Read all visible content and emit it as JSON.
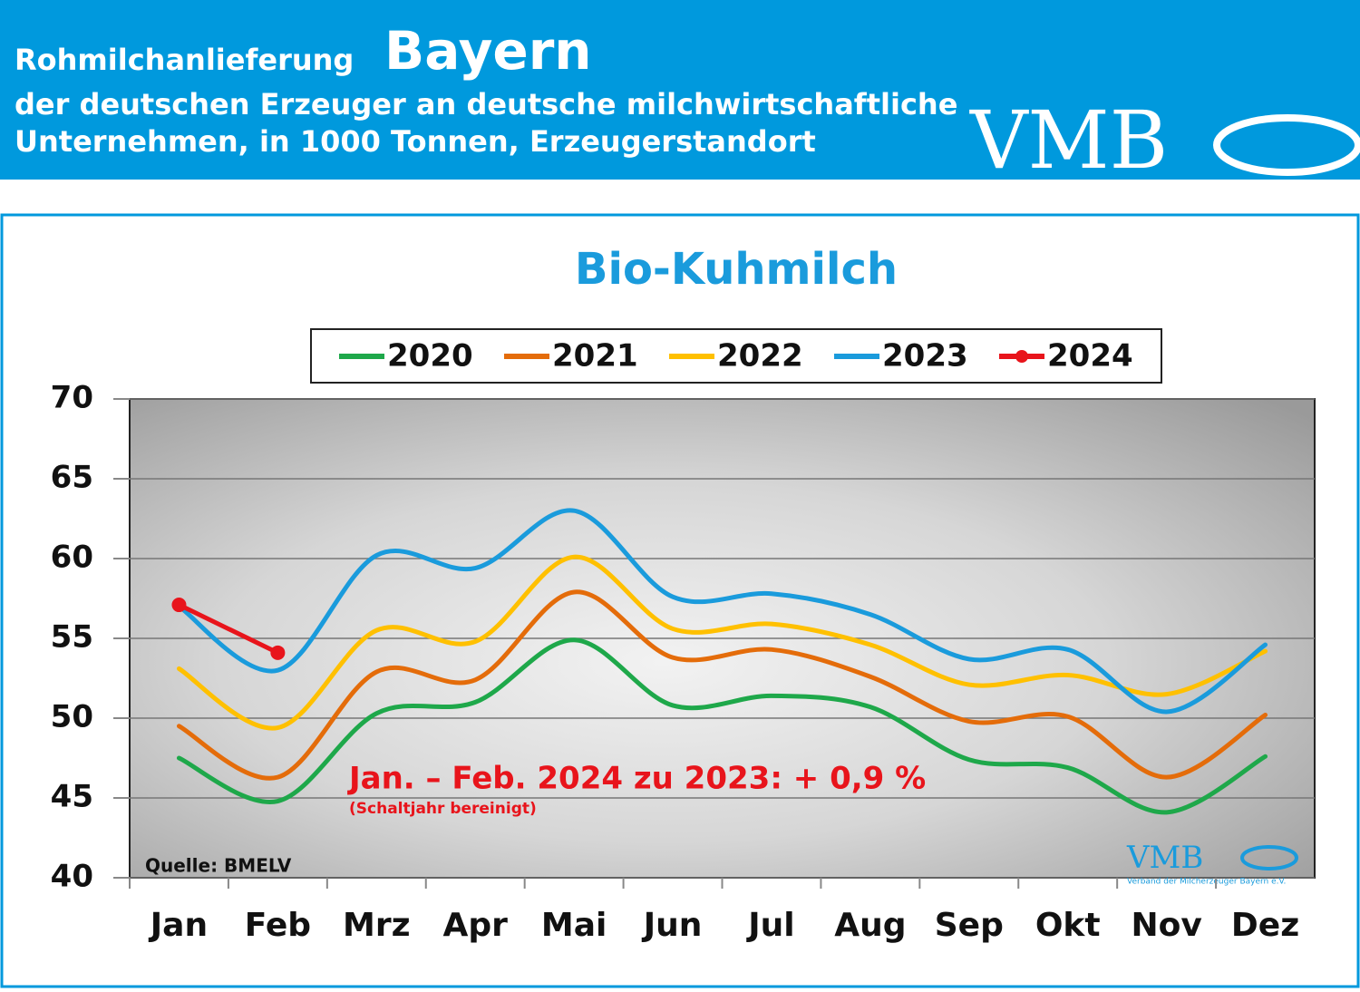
{
  "header": {
    "line1": "Rohmilchanlieferung",
    "highlight": "Bayern",
    "line2": "der deutschen Erzeuger an deutsche milchwirtschaftliche",
    "line3": "Unternehmen, in 1000 Tonnen, Erzeugerstandort",
    "logo": "VMB"
  },
  "chart_data": {
    "type": "line",
    "title": "Bio-Kuhmilch",
    "annotation": "Jan. – Feb. 2024 zu 2023: + 0,9 %",
    "note": "(Schaltjahr bereinigt)",
    "source": "Quelle: BMELV",
    "watermark": "VMB",
    "watermark_sub": "Verband der Milcherzeuger Bayern e.V.",
    "categories": [
      "Jan",
      "Feb",
      "Mrz",
      "Apr",
      "Mai",
      "Jun",
      "Jul",
      "Aug",
      "Sep",
      "Okt",
      "Nov",
      "Dez"
    ],
    "series": [
      {
        "name": "2020",
        "color": "#1ea84a",
        "values": [
          47.5,
          44.8,
          50.3,
          51.0,
          54.9,
          50.8,
          51.4,
          50.7,
          47.4,
          46.9,
          44.1,
          47.6
        ]
      },
      {
        "name": "2021",
        "color": "#e46c0a",
        "values": [
          49.5,
          46.3,
          52.9,
          52.4,
          57.9,
          53.8,
          54.3,
          52.6,
          49.8,
          50.1,
          46.3,
          50.2
        ]
      },
      {
        "name": "2022",
        "color": "#ffc000",
        "values": [
          53.1,
          49.4,
          55.5,
          54.8,
          60.1,
          55.6,
          55.9,
          54.6,
          52.1,
          52.7,
          51.5,
          54.2
        ]
      },
      {
        "name": "2023",
        "color": "#1a9bdc",
        "values": [
          57.0,
          53.0,
          60.2,
          59.4,
          63.0,
          57.6,
          57.8,
          56.5,
          53.7,
          54.3,
          50.4,
          54.6
        ]
      },
      {
        "name": "2024",
        "color": "#e8141b",
        "markers": true,
        "values": [
          57.1,
          54.1,
          null,
          null,
          null,
          null,
          null,
          null,
          null,
          null,
          null,
          null
        ]
      }
    ],
    "ylim": [
      40,
      70
    ],
    "yticks": [
      40,
      45,
      50,
      55,
      60,
      65,
      70
    ],
    "grid": true,
    "smooth": true,
    "legend": "top"
  }
}
